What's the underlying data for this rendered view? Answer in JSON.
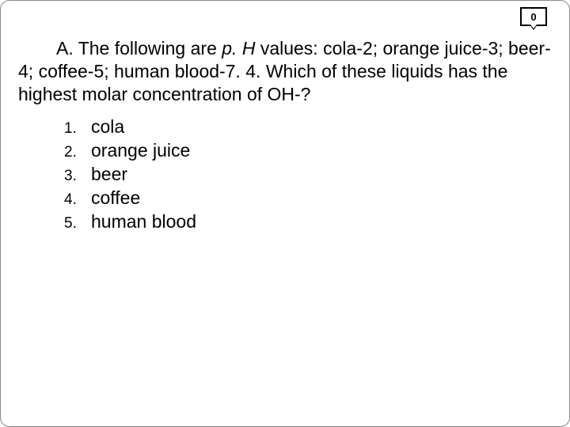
{
  "badge": {
    "value": "0"
  },
  "question": {
    "prefix": "A.  The following are ",
    "ph_label": "p. H",
    "body": " values: cola-2; orange juice-3; beer-4; coffee-5; human blood-7. 4. Which of these liquids has the highest molar concentration of OH-?"
  },
  "options": [
    {
      "num": "1.",
      "text": "cola"
    },
    {
      "num": "2.",
      "text": "orange juice"
    },
    {
      "num": "3.",
      "text": "beer"
    },
    {
      "num": "4.",
      "text": "coffee"
    },
    {
      "num": "5.",
      "text": "human blood"
    }
  ],
  "colors": {
    "background": "#ffffff",
    "text": "#000000",
    "border": "#888888"
  }
}
